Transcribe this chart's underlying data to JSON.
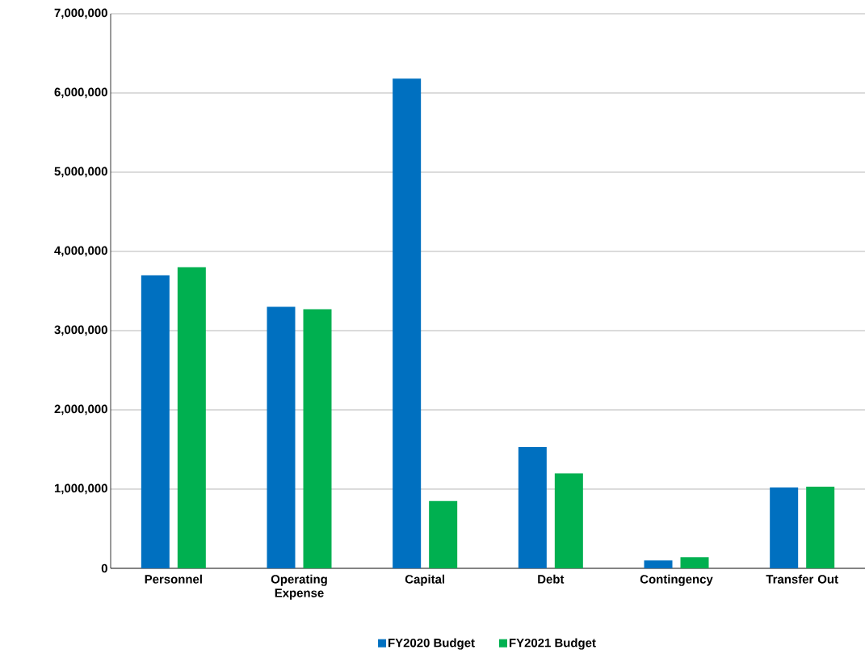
{
  "chart_data": {
    "type": "bar",
    "categories": [
      "Personnel",
      "Operating Expense",
      "Capital",
      "Debt",
      "Contingency",
      "Transfer Out"
    ],
    "series": [
      {
        "name": "FY2020 Budget",
        "color": "#0070c0",
        "values": [
          3700000,
          3300000,
          6180000,
          1530000,
          100000,
          1020000
        ]
      },
      {
        "name": "FY2021 Budget",
        "color": "#00b050",
        "values": [
          3800000,
          3270000,
          850000,
          1200000,
          140000,
          1030000
        ]
      }
    ],
    "ylim": [
      0,
      7000000
    ],
    "yticks": [
      0,
      {
        "value": 1000000,
        "label": "1,000,000"
      },
      {
        "value": 2000000,
        "label": "2,000,000"
      },
      {
        "value": 3000000,
        "label": "3,000,000"
      },
      {
        "value": 4000000,
        "label": "4,000,000"
      },
      {
        "value": 5000000,
        "label": "5,000,000"
      },
      {
        "value": 6000000,
        "label": "6,000,000"
      },
      {
        "value": 7000000,
        "label": "7,000,000"
      }
    ],
    "grid": "y",
    "legend": "bottom"
  }
}
